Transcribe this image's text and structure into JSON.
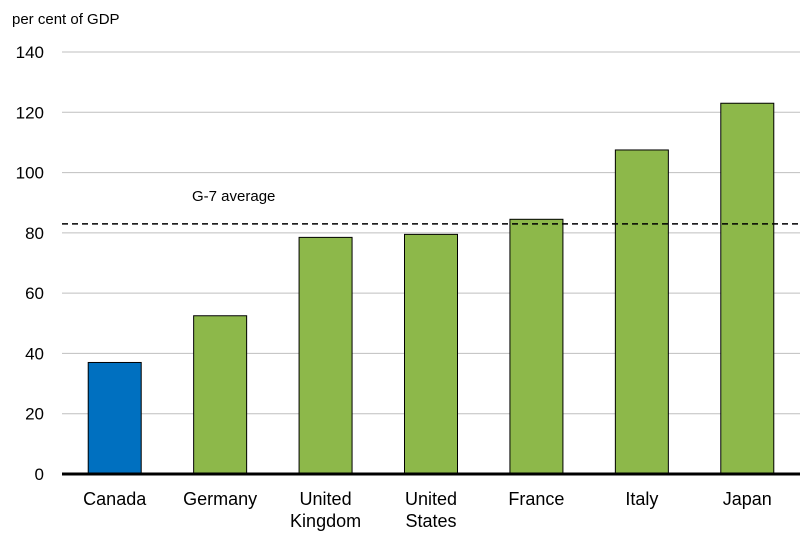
{
  "chart_data": {
    "type": "bar",
    "title": "",
    "ylabel": "per cent of GDP",
    "xlabel": "",
    "categories": [
      [
        "Canada"
      ],
      [
        "Germany"
      ],
      [
        "United",
        "Kingdom"
      ],
      [
        "United",
        "States"
      ],
      [
        "France"
      ],
      [
        "Italy"
      ],
      [
        "Japan"
      ]
    ],
    "values": [
      37,
      52.5,
      78.5,
      79.5,
      84.5,
      107.5,
      123
    ],
    "bar_colors": [
      "#0070C0",
      "#8DB84A",
      "#8DB84A",
      "#8DB84A",
      "#8DB84A",
      "#8DB84A",
      "#8DB84A"
    ],
    "ylim": [
      0,
      140
    ],
    "yticks": [
      0,
      20,
      40,
      60,
      80,
      100,
      120,
      140
    ],
    "grid": true,
    "reference_line": {
      "label": "G-7 average",
      "value": 83,
      "style": "dashed"
    }
  }
}
